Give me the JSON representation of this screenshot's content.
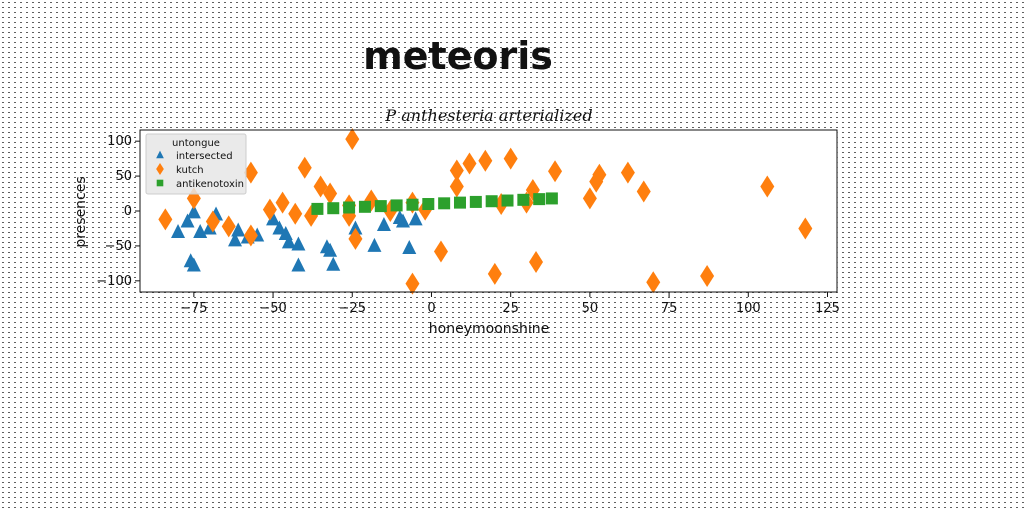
{
  "page": {
    "title": "meteoris"
  },
  "chart_data": {
    "type": "scatter",
    "subtitle": "P anthesteria arterialized",
    "xlabel": "honeymoonshine",
    "ylabel": "presences",
    "xlim": [
      -92,
      128
    ],
    "ylim": [
      -116,
      116
    ],
    "x_ticks": [
      -75,
      -50,
      -25,
      0,
      25,
      50,
      75,
      100,
      125
    ],
    "y_ticks": [
      100,
      50,
      0,
      -50,
      -100
    ],
    "grid": false,
    "legend": {
      "title": "untongue",
      "placement": "top-left"
    },
    "series": [
      {
        "name": "intersected",
        "marker": "triangle",
        "color": "#1f77b4",
        "points": [
          [
            -80,
            -30
          ],
          [
            -77,
            -15
          ],
          [
            -76,
            -72
          ],
          [
            -75,
            -78
          ],
          [
            -75,
            -2
          ],
          [
            -73,
            -30
          ],
          [
            -70,
            -25
          ],
          [
            -68,
            -5
          ],
          [
            -62,
            -42
          ],
          [
            -61,
            -28
          ],
          [
            -58,
            -38
          ],
          [
            -55,
            -35
          ],
          [
            -50,
            -12
          ],
          [
            -48,
            -25
          ],
          [
            -46,
            -33
          ],
          [
            -45,
            -45
          ],
          [
            -42,
            -48
          ],
          [
            -42,
            -78
          ],
          [
            -33,
            -52
          ],
          [
            -32,
            -57
          ],
          [
            -31,
            -77
          ],
          [
            -24,
            -25
          ],
          [
            -18,
            -50
          ],
          [
            -15,
            -20
          ],
          [
            -10,
            -10
          ],
          [
            -9,
            -15
          ],
          [
            -7,
            -53
          ],
          [
            -5,
            -12
          ]
        ]
      },
      {
        "name": "kutch",
        "marker": "diamond",
        "color": "#ff7f0e",
        "points": [
          [
            -84,
            -12
          ],
          [
            -75,
            18
          ],
          [
            -69,
            -15
          ],
          [
            -64,
            -22
          ],
          [
            -57,
            55
          ],
          [
            -57,
            -35
          ],
          [
            -51,
            2
          ],
          [
            -47,
            12
          ],
          [
            -43,
            -4
          ],
          [
            -40,
            62
          ],
          [
            -38,
            -7
          ],
          [
            -35,
            35
          ],
          [
            -32,
            25
          ],
          [
            -26,
            -7
          ],
          [
            -26,
            8
          ],
          [
            -25,
            103
          ],
          [
            -24,
            -40
          ],
          [
            -19,
            15
          ],
          [
            -13,
            0
          ],
          [
            -6,
            12
          ],
          [
            -6,
            -104
          ],
          [
            -2,
            2
          ],
          [
            3,
            -58
          ],
          [
            8,
            58
          ],
          [
            8,
            35
          ],
          [
            12,
            68
          ],
          [
            17,
            72
          ],
          [
            22,
            10
          ],
          [
            20,
            -90
          ],
          [
            25,
            75
          ],
          [
            30,
            12
          ],
          [
            32,
            30
          ],
          [
            33,
            -73
          ],
          [
            39,
            57
          ],
          [
            50,
            18
          ],
          [
            52,
            42
          ],
          [
            53,
            52
          ],
          [
            62,
            55
          ],
          [
            67,
            28
          ],
          [
            70,
            -102
          ],
          [
            87,
            -93
          ],
          [
            106,
            35
          ],
          [
            118,
            -25
          ]
        ]
      },
      {
        "name": "antikenotoxin",
        "marker": "square",
        "color": "#2ca02c",
        "points": [
          [
            -36,
            3
          ],
          [
            -31,
            4
          ],
          [
            -26,
            5
          ],
          [
            -21,
            6
          ],
          [
            -16,
            7
          ],
          [
            -11,
            8
          ],
          [
            -6,
            9
          ],
          [
            -1,
            10
          ],
          [
            4,
            11
          ],
          [
            9,
            12
          ],
          [
            14,
            13
          ],
          [
            19,
            14
          ],
          [
            24,
            15
          ],
          [
            29,
            16
          ],
          [
            34,
            17
          ],
          [
            38,
            18
          ]
        ]
      }
    ]
  }
}
